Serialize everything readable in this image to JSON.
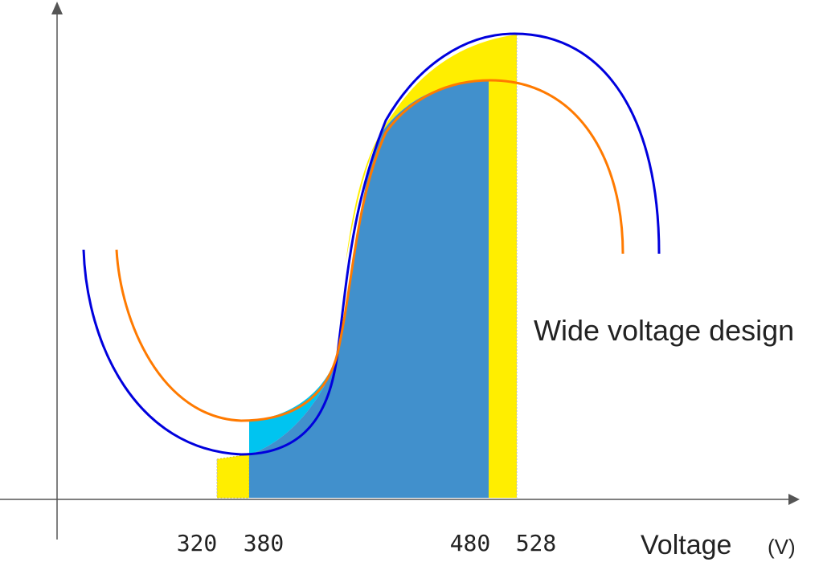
{
  "chart_data": {
    "type": "line",
    "annotation": "Wide voltage design",
    "xlabel": "Voltage",
    "xunit": "(V)",
    "ticks": [
      "320",
      "380",
      "480",
      "528"
    ],
    "series": [
      {
        "name": "",
        "color": "#0000dd"
      },
      {
        "name": "",
        "color": "#ff7a00"
      }
    ],
    "regions": [
      {
        "from": "320",
        "to": "380",
        "color": "#ffee00"
      },
      {
        "from": "380",
        "to": "480",
        "color": "#4190cc"
      },
      {
        "from": "480",
        "to": "528",
        "color": "#ffee00"
      }
    ],
    "colors": {
      "axis": "#555555",
      "upper_band": "#ffee00",
      "lower_band": "#00c4f0",
      "fill": "#4190cc"
    }
  }
}
